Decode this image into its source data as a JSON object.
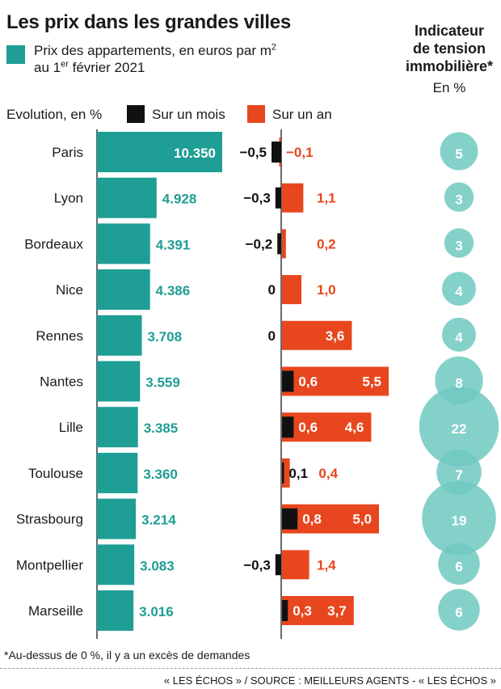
{
  "header": {
    "title": "Les prix dans les grandes villes",
    "legend_price": "Prix des appartements, en euros par m",
    "legend_price_sup": "2",
    "legend_date_pre": "au 1",
    "legend_date_sup": "er",
    "legend_date_post": " février 2021"
  },
  "indicator": {
    "title_line1": "Indicateur",
    "title_line2": "de tension",
    "title_line3": "immobilière*",
    "unit": "En %"
  },
  "evolution": {
    "label": "Evolution, en %",
    "month_label": "Sur un mois",
    "year_label": "Sur un an"
  },
  "colors": {
    "price": "#1e9e94",
    "month": "#111111",
    "year": "#e8461e",
    "bubble": "#6ec9c1"
  },
  "chart_data": {
    "type": "bar",
    "categories": [
      "Paris",
      "Lyon",
      "Bordeaux",
      "Nice",
      "Rennes",
      "Nantes",
      "Lille",
      "Toulouse",
      "Strasbourg",
      "Montpellier",
      "Marseille"
    ],
    "price_labels": [
      "10.350",
      "4.928",
      "4.391",
      "4.386",
      "3.708",
      "3.559",
      "3.385",
      "3.360",
      "3.214",
      "3.083",
      "3.016"
    ],
    "prices": [
      10350,
      4928,
      4391,
      4386,
      3708,
      3559,
      3385,
      3360,
      3214,
      3083,
      3016
    ],
    "month_change": [
      -0.5,
      -0.3,
      -0.2,
      0,
      0,
      0.6,
      0.6,
      0.1,
      0.8,
      -0.3,
      0.3
    ],
    "month_labels": [
      "−0,5",
      "−0,3",
      "−0,2",
      "0",
      "0",
      "0,6",
      "0,6",
      "0,1",
      "0,8",
      "−0,3",
      "0,3"
    ],
    "year_change": [
      -0.1,
      1.1,
      0.2,
      1.0,
      3.6,
      5.5,
      4.6,
      0.4,
      5.0,
      1.4,
      3.7
    ],
    "year_labels": [
      "−0,1",
      "1,1",
      "0,2",
      "1,0",
      "3,6",
      "5,5",
      "4,6",
      "0,4",
      "5,0",
      "1,4",
      "3,7"
    ],
    "tension": [
      5,
      3,
      3,
      4,
      4,
      8,
      22,
      7,
      19,
      6,
      6
    ],
    "tension_labels": [
      "5",
      "3",
      "3",
      "4",
      "4",
      "8",
      "22",
      "7",
      "19",
      "6",
      "6"
    ]
  },
  "footer": {
    "footnote": "*Au-dessus de 0 %, il y a un excès de demandes",
    "source": "« LES ÉCHOS » / SOURCE : MEILLEURS AGENTS - « LES ÉCHOS »"
  }
}
